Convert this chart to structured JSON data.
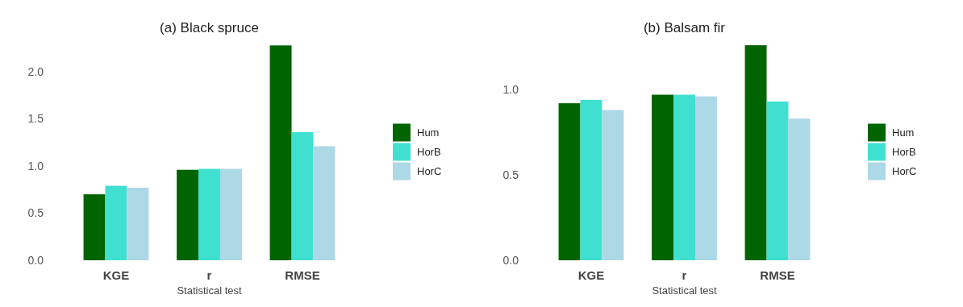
{
  "chart_data": [
    {
      "type": "bar",
      "title": "(a) Black spruce",
      "xlabel": "Statistical test",
      "categories": [
        "KGE",
        "r",
        "RMSE"
      ],
      "ylim": [
        0,
        2.3
      ],
      "yticks": [
        {
          "value": 0,
          "label": "0.0"
        },
        {
          "value": 0.5,
          "label": "0.5"
        },
        {
          "value": 1,
          "label": "1.0"
        },
        {
          "value": 1.5,
          "label": "1.5"
        },
        {
          "value": 2,
          "label": "2.0"
        }
      ],
      "legend": "right",
      "grid": false,
      "series": [
        {
          "name": "Hum",
          "color": "#006400",
          "values": [
            0.7,
            0.96,
            2.28
          ]
        },
        {
          "name": "HorB",
          "color": "#40e0d0",
          "values": [
            0.79,
            0.97,
            1.36
          ]
        },
        {
          "name": "HorC",
          "color": "#add8e6",
          "values": [
            0.77,
            0.97,
            1.21
          ]
        }
      ]
    },
    {
      "type": "bar",
      "title": "(b) Balsam fir",
      "xlabel": "Statistical test",
      "categories": [
        "KGE",
        "r",
        "RMSE"
      ],
      "ylim": [
        0,
        1.27
      ],
      "yticks": [
        {
          "value": 0,
          "label": "0.0"
        },
        {
          "value": 0.5,
          "label": "0.5"
        },
        {
          "value": 1,
          "label": "1.0"
        }
      ],
      "legend": "right",
      "grid": false,
      "series": [
        {
          "name": "Hum",
          "color": "#006400",
          "values": [
            0.92,
            0.97,
            1.26
          ]
        },
        {
          "name": "HorB",
          "color": "#40e0d0",
          "values": [
            0.94,
            0.97,
            0.93
          ]
        },
        {
          "name": "HorC",
          "color": "#add8e6",
          "values": [
            0.88,
            0.96,
            0.83
          ]
        }
      ]
    }
  ]
}
